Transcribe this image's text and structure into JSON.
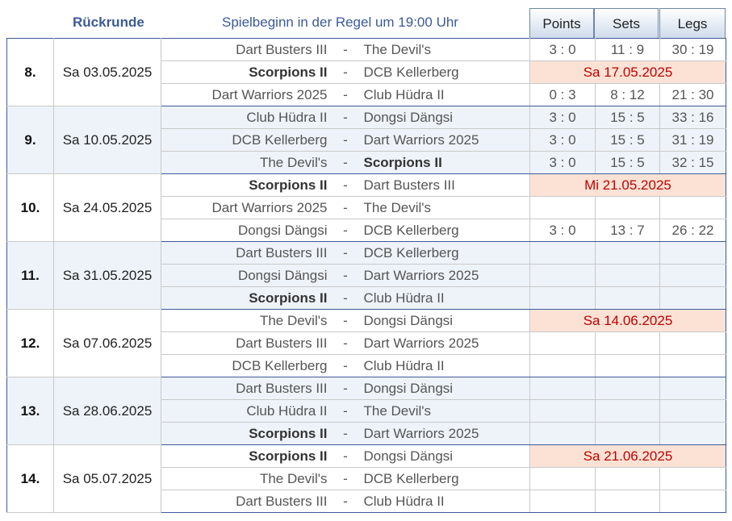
{
  "header": {
    "title": "Rückrunde",
    "subtitle": "Spielbeginn in der Regel um 19:00 Uhr",
    "columns": [
      "Points",
      "Sets",
      "Legs"
    ]
  },
  "rounds": [
    {
      "round": "8.",
      "date": "Sa 03.05.2025",
      "alt": false,
      "games": [
        {
          "home": "Dart Busters III",
          "away": "The Devil's",
          "sep": "-",
          "points": "3 : 0",
          "sets": "11 : 9",
          "legs": "30 : 19",
          "home_bold": false,
          "away_bold": false
        },
        {
          "home": "Scorpions II",
          "away": "DCB Kellerberg",
          "sep": "-",
          "postponed": "Sa 17.05.2025",
          "home_bold": true,
          "away_bold": false
        },
        {
          "home": "Dart Warriors 2025",
          "away": "Club Hüdra II",
          "sep": "-",
          "points": "0 : 3",
          "sets": "8 : 12",
          "legs": "21 : 30",
          "home_bold": false,
          "away_bold": false
        }
      ]
    },
    {
      "round": "9.",
      "date": "Sa 10.05.2025",
      "alt": true,
      "games": [
        {
          "home": "Club Hüdra II",
          "away": "Dongsi Dängsi",
          "sep": "-",
          "points": "3 : 0",
          "sets": "15 : 5",
          "legs": "33 : 16",
          "home_bold": false,
          "away_bold": false
        },
        {
          "home": "DCB Kellerberg",
          "away": "Dart Warriors 2025",
          "sep": "-",
          "points": "3 : 0",
          "sets": "15 : 5",
          "legs": "31 : 19",
          "home_bold": false,
          "away_bold": false
        },
        {
          "home": "The Devil's",
          "away": "Scorpions II",
          "sep": "-",
          "points": "3 : 0",
          "sets": "15 : 5",
          "legs": "32 : 15",
          "home_bold": false,
          "away_bold": true
        }
      ]
    },
    {
      "round": "10.",
      "date": "Sa 24.05.2025",
      "alt": false,
      "games": [
        {
          "home": "Scorpions II",
          "away": "Dart Busters III",
          "sep": "-",
          "postponed": "Mi 21.05.2025",
          "home_bold": true,
          "away_bold": false
        },
        {
          "home": "Dart Warriors 2025",
          "away": "The Devil's",
          "sep": "-",
          "home_bold": false,
          "away_bold": false
        },
        {
          "home": "Dongsi Dängsi",
          "away": "DCB Kellerberg",
          "sep": "-",
          "points": "3 : 0",
          "sets": "13 : 7",
          "legs": "26 : 22",
          "home_bold": false,
          "away_bold": false
        }
      ]
    },
    {
      "round": "11.",
      "date": "Sa 31.05.2025",
      "alt": true,
      "games": [
        {
          "home": "Dart Busters III",
          "away": "DCB Kellerberg",
          "sep": "-",
          "home_bold": false,
          "away_bold": false
        },
        {
          "home": "Dongsi Dängsi",
          "away": "Dart Warriors 2025",
          "sep": "-",
          "home_bold": false,
          "away_bold": false
        },
        {
          "home": "Scorpions II",
          "away": "Club Hüdra II",
          "sep": "-",
          "home_bold": true,
          "away_bold": false
        }
      ]
    },
    {
      "round": "12.",
      "date": "Sa 07.06.2025",
      "alt": false,
      "games": [
        {
          "home": "The Devil's",
          "away": "Dongsi Dängsi",
          "sep": "-",
          "postponed": "Sa 14.06.2025",
          "home_bold": false,
          "away_bold": false
        },
        {
          "home": "Dart Busters III",
          "away": "Dart Warriors 2025",
          "sep": "-",
          "home_bold": false,
          "away_bold": false
        },
        {
          "home": "DCB Kellerberg",
          "away": "Club Hüdra II",
          "sep": "-",
          "home_bold": false,
          "away_bold": false
        }
      ]
    },
    {
      "round": "13.",
      "date": "Sa 28.06.2025",
      "alt": true,
      "games": [
        {
          "home": "Dart Busters III",
          "away": "Dongsi Dängsi",
          "sep": "-",
          "home_bold": false,
          "away_bold": false
        },
        {
          "home": "Club Hüdra II",
          "away": "The Devil's",
          "sep": "-",
          "home_bold": false,
          "away_bold": false
        },
        {
          "home": "Scorpions II",
          "away": "Dart Warriors 2025",
          "sep": "-",
          "home_bold": true,
          "away_bold": false
        }
      ]
    },
    {
      "round": "14.",
      "date": "Sa 05.07.2025",
      "alt": false,
      "games": [
        {
          "home": "Scorpions II",
          "away": "Dongsi Dängsi",
          "sep": "-",
          "postponed": "Sa 21.06.2025",
          "home_bold": true,
          "away_bold": false
        },
        {
          "home": "The Devil's",
          "away": "DCB Kellerberg",
          "sep": "-",
          "home_bold": false,
          "away_bold": false
        },
        {
          "home": "Dart Busters III",
          "away": "Club Hüdra II",
          "sep": "-",
          "home_bold": false,
          "away_bold": false
        }
      ]
    }
  ],
  "colors": {
    "header_text": "#3c5a99",
    "postponed_bg": "#fbe2d5",
    "postponed_text": "#c00000",
    "alt_row_bg": "#eef3f9"
  }
}
